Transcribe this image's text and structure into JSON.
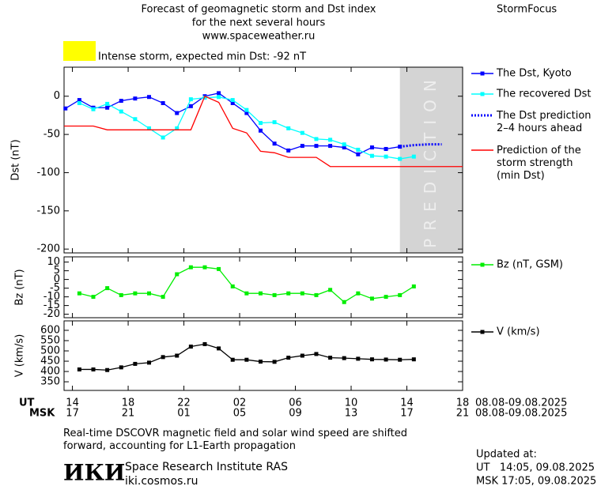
{
  "header": {
    "title_lines": [
      "Forecast of geomagnetic storm and Dst index",
      "for the next several hours",
      "www.spaceweather.ru"
    ],
    "brand": "StormFocus",
    "alert": "Intense storm, expected min Dst: -92 nT",
    "alert_color": "#ffff00"
  },
  "chart_data": [
    {
      "type": "line",
      "y_label": "Dst (nT)",
      "x": [
        13.5,
        14.5,
        15.5,
        16.5,
        17.5,
        18.5,
        19.5,
        20.5,
        21.5,
        22.5,
        23.5,
        24.5,
        25.5,
        26.5,
        27.5,
        28.5,
        29.5,
        30.5,
        31.5,
        32.5,
        33.5,
        34.5,
        35.5,
        36.5,
        37.5,
        38.5,
        39.5,
        40.5
      ],
      "xlim": [
        13.4,
        42
      ],
      "ylim": [
        -205,
        38
      ],
      "yticks": [
        0,
        -50,
        -100,
        -150,
        -200
      ],
      "prediction_region": [
        37.5,
        42
      ],
      "prediction_text": "PREDICTION",
      "series": [
        {
          "name": "The Dst, Kyoto",
          "color": "#0000ff",
          "marker": "square",
          "values": [
            -16,
            -5,
            -15,
            -15,
            -6,
            -3,
            -1,
            -9,
            -22,
            -13,
            0,
            4,
            -9,
            -22,
            -45,
            -62,
            -71,
            -65,
            -65,
            -65,
            -67,
            -76,
            -67,
            -69,
            -66,
            null,
            null,
            null
          ]
        },
        {
          "name": "The recovered Dst",
          "color": "#00ffff",
          "marker": "square",
          "values": [
            null,
            -9,
            -17,
            -10,
            -20,
            -30,
            -42,
            -54,
            -42,
            -4,
            -2,
            -1,
            -5,
            -18,
            -35,
            -34,
            -42,
            -48,
            -56,
            -57,
            -63,
            -70,
            -78,
            -79,
            -82,
            -79,
            null,
            null
          ]
        },
        {
          "name": "The Dst prediction\n2–4 hours ahead",
          "color": "#0000ff",
          "dash": "dotted",
          "values": [
            null,
            null,
            null,
            null,
            null,
            null,
            null,
            null,
            null,
            null,
            null,
            null,
            null,
            null,
            null,
            null,
            null,
            null,
            null,
            null,
            null,
            null,
            null,
            null,
            -66,
            -64,
            -63,
            -63
          ]
        },
        {
          "name": "Prediction of the\nstorm strength\n(min Dst)",
          "color": "#ff0000",
          "x": [
            13.4,
            15.5,
            16.5,
            22.5,
            23.5,
            24.5,
            25.5,
            26.5,
            27.5,
            28.5,
            29.5,
            31.5,
            32.5,
            42
          ],
          "values": [
            -39,
            -39,
            -44,
            -44,
            0,
            -8,
            -42,
            -48,
            -72,
            -74,
            -80,
            -80,
            -92,
            -92
          ]
        }
      ]
    },
    {
      "type": "line",
      "y_label": "Bz (nT)",
      "x": [
        13.5,
        14.5,
        15.5,
        16.5,
        17.5,
        18.5,
        19.5,
        20.5,
        21.5,
        22.5,
        23.5,
        24.5,
        25.5,
        26.5,
        27.5,
        28.5,
        29.5,
        30.5,
        31.5,
        32.5,
        33.5,
        34.5,
        35.5,
        36.5,
        37.5,
        38.5,
        39.5,
        40.5
      ],
      "xlim": [
        13.4,
        42
      ],
      "ylim": [
        -22,
        13
      ],
      "yticks": [
        10,
        5,
        0,
        -5,
        -10,
        -15,
        -20
      ],
      "series": [
        {
          "name": "Bz (nT, GSM)",
          "color": "#00ee00",
          "marker": "square",
          "values": [
            null,
            -8,
            -10,
            -5,
            -9,
            -8,
            -8,
            -10,
            3,
            7,
            7,
            6,
            -4,
            -8,
            -8,
            -9,
            -8,
            -8,
            -9,
            -6,
            -13,
            -8,
            -11,
            -10,
            -9,
            -4,
            null,
            null
          ]
        }
      ]
    },
    {
      "type": "line",
      "y_label": "V (km/s)",
      "x": [
        13.5,
        14.5,
        15.5,
        16.5,
        17.5,
        18.5,
        19.5,
        20.5,
        21.5,
        22.5,
        23.5,
        24.5,
        25.5,
        26.5,
        27.5,
        28.5,
        29.5,
        30.5,
        31.5,
        32.5,
        33.5,
        34.5,
        35.5,
        36.5,
        37.5,
        38.5,
        39.5,
        40.5
      ],
      "xlim": [
        13.4,
        42
      ],
      "ylim": [
        308,
        646
      ],
      "yticks": [
        350,
        400,
        450,
        500,
        550,
        600
      ],
      "xticks": [
        14,
        18,
        22,
        {
          "value": 26,
          "label": "02"
        },
        {
          "value": 30,
          "label": "06"
        },
        {
          "value": 34,
          "label": "10"
        },
        {
          "value": 38,
          "label": "14"
        },
        {
          "value": 42,
          "label": "18"
        }
      ],
      "msk_ticks": [
        {
          "value": 14,
          "label": "17"
        },
        {
          "value": 18,
          "label": "21"
        },
        {
          "value": 22,
          "label": "01"
        },
        {
          "value": 26,
          "label": "05"
        },
        {
          "value": 30,
          "label": "09"
        },
        {
          "value": 34,
          "label": "13"
        },
        {
          "value": 38,
          "label": "17"
        },
        {
          "value": 42,
          "label": "21"
        }
      ],
      "x_label": "UT",
      "msk_label": "MSK",
      "x_range_label": "08.08-09.08.2025",
      "msk_range_label": "08.08-09.08.2025",
      "series": [
        {
          "name": "V (km/s)",
          "color": "#000000",
          "marker": "square",
          "values": [
            null,
            410,
            410,
            407,
            420,
            437,
            443,
            470,
            477,
            521,
            533,
            512,
            457,
            457,
            448,
            447,
            467,
            477,
            485,
            467,
            465,
            462,
            459,
            458,
            457,
            459,
            null,
            null
          ]
        }
      ]
    }
  ],
  "footer": {
    "note": "Real-time DSCOVR magnetic field and solar wind speed are shifted\nforward, accounting for L1-Earth propagation",
    "logo": "ИКИ",
    "institute": "Space Research Institute RAS",
    "website": "iki.cosmos.ru",
    "updated_label": "Updated at:",
    "updated_ut": "UT   14:05, 09.08.2025",
    "updated_msk": "MSK 17:05, 09.08.2025"
  }
}
